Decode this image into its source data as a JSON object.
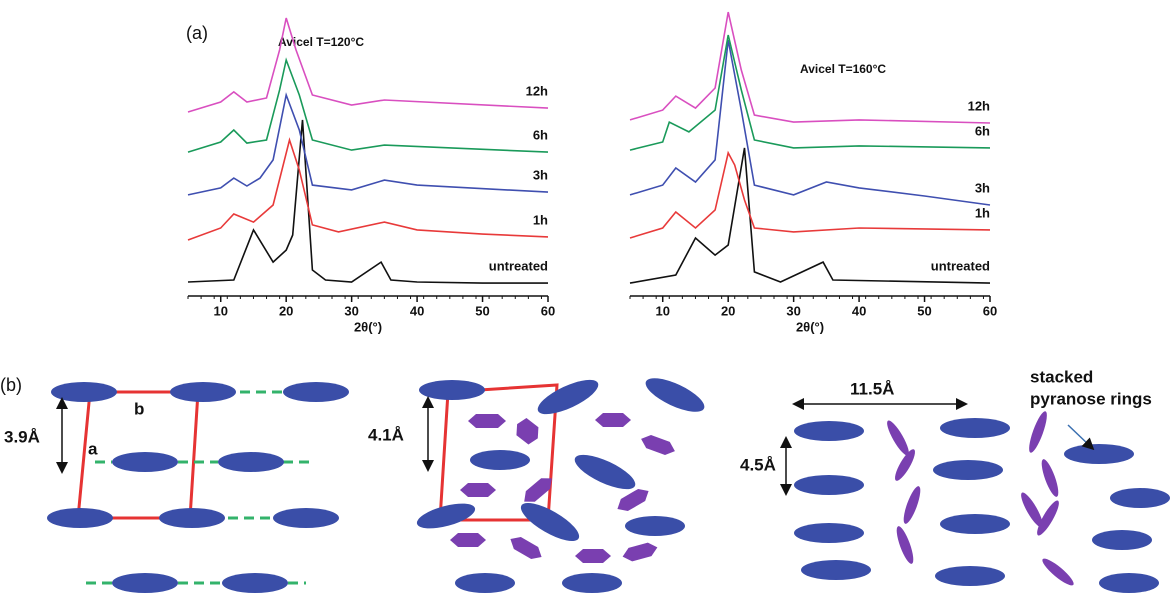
{
  "panel_labels": [
    "(a)",
    "(b)"
  ],
  "chart_data": [
    {
      "type": "line",
      "title": "Avicel T=120°C",
      "x_label": "2θ(°)",
      "xlim": [
        5,
        60
      ],
      "xticks": [
        10,
        20,
        30,
        40,
        50,
        60
      ],
      "ylim": [
        0,
        105
      ],
      "series": [
        {
          "name": "untreated",
          "color": "#111111",
          "x": [
            5,
            12,
            15,
            18,
            20,
            21,
            22.5,
            24,
            26,
            30,
            34.5,
            36,
            40,
            50,
            60
          ],
          "values": [
            5,
            5.7,
            23.6,
            12.1,
            16.4,
            21.8,
            62.9,
            9.3,
            5.7,
            5,
            12.1,
            5.7,
            5,
            4.6,
            4.6
          ]
        },
        {
          "name": "1h",
          "color": "#e83a3a",
          "x": [
            5,
            10,
            12,
            15,
            18,
            20.5,
            22,
            24,
            28,
            35,
            40,
            50,
            60
          ],
          "values": [
            20,
            24.3,
            29.3,
            26.4,
            32.5,
            55.7,
            45,
            25.4,
            22.9,
            26.4,
            23.6,
            22.1,
            21.1
          ]
        },
        {
          "name": "3h",
          "color": "#3f4fb0",
          "x": [
            5,
            10,
            12,
            14,
            16,
            18,
            20,
            22,
            24,
            30,
            35,
            40,
            60
          ],
          "values": [
            36.1,
            38.6,
            42.1,
            39.3,
            42.1,
            48.6,
            71.8,
            59.3,
            39.6,
            37.9,
            41.4,
            39.6,
            37.1
          ]
        },
        {
          "name": "6h",
          "color": "#1a9a5a",
          "x": [
            5,
            10,
            12,
            14,
            17,
            19,
            20,
            22,
            24,
            30,
            35,
            60
          ],
          "values": [
            51.4,
            55,
            59.3,
            54.6,
            55.7,
            73.6,
            84.3,
            71.8,
            55.7,
            52.1,
            53.9,
            51.4
          ]
        },
        {
          "name": "12h",
          "color": "#d94fc0",
          "x": [
            5,
            10,
            12,
            14,
            17,
            19,
            20,
            21.5,
            24,
            30,
            35,
            60
          ],
          "values": [
            65.7,
            69.3,
            72.9,
            69.3,
            70.7,
            87.9,
            99.3,
            87.9,
            71.8,
            68.2,
            70,
            67.1
          ]
        }
      ]
    },
    {
      "type": "line",
      "title": "Avicel T=160°C",
      "x_label": "2θ(°)",
      "xlim": [
        5,
        60
      ],
      "xticks": [
        10,
        20,
        30,
        40,
        50,
        60
      ],
      "ylim": [
        0,
        105
      ],
      "series": [
        {
          "name": "untreated",
          "color": "#111111",
          "x": [
            5,
            12,
            15,
            18,
            20,
            22.5,
            24,
            28,
            34.5,
            36,
            60
          ],
          "values": [
            4.6,
            7.5,
            20.7,
            14.6,
            18.2,
            52.9,
            8.6,
            5,
            12.1,
            5.7,
            4.6
          ]
        },
        {
          "name": "1h",
          "color": "#e83a3a",
          "x": [
            5,
            10,
            12,
            15,
            18,
            20,
            21,
            22.5,
            24,
            30,
            40,
            60
          ],
          "values": [
            20.7,
            24.3,
            30,
            24.3,
            30.7,
            51.1,
            46.8,
            34.3,
            24.3,
            22.9,
            24.3,
            23.6
          ]
        },
        {
          "name": "3h",
          "color": "#3f4fb0",
          "x": [
            5,
            10,
            12,
            15,
            18,
            20,
            22,
            24,
            30,
            35,
            40,
            50,
            60
          ],
          "values": [
            36.1,
            39.6,
            45.7,
            40.7,
            48.6,
            91.4,
            66.4,
            39.6,
            36.1,
            40.7,
            38.6,
            35.7,
            32.5
          ]
        },
        {
          "name": "6h",
          "color": "#1a9a5a",
          "x": [
            5,
            10,
            11,
            14,
            18,
            20,
            22,
            24,
            30,
            40,
            60
          ],
          "values": [
            52.1,
            55,
            62.1,
            58.6,
            66.4,
            93.2,
            73.6,
            55.7,
            52.9,
            53.6,
            52.9
          ]
        },
        {
          "name": "12h",
          "color": "#d94fc0",
          "x": [
            5,
            10,
            12,
            15,
            18,
            20,
            22,
            24,
            30,
            40,
            60
          ],
          "values": [
            62.9,
            66.4,
            71.4,
            67.1,
            74.3,
            101.4,
            80.7,
            64.6,
            62.1,
            62.9,
            61.8
          ]
        }
      ]
    }
  ],
  "diagram": {
    "spacing_1": "3.9Å",
    "axis_b": "b",
    "axis_a": "a",
    "spacing_2": "4.1Å",
    "spacing_3": "11.5Å",
    "spacing_4": "4.5Å",
    "annotation_line1": "stacked",
    "annotation_line2": "pyranose rings"
  }
}
